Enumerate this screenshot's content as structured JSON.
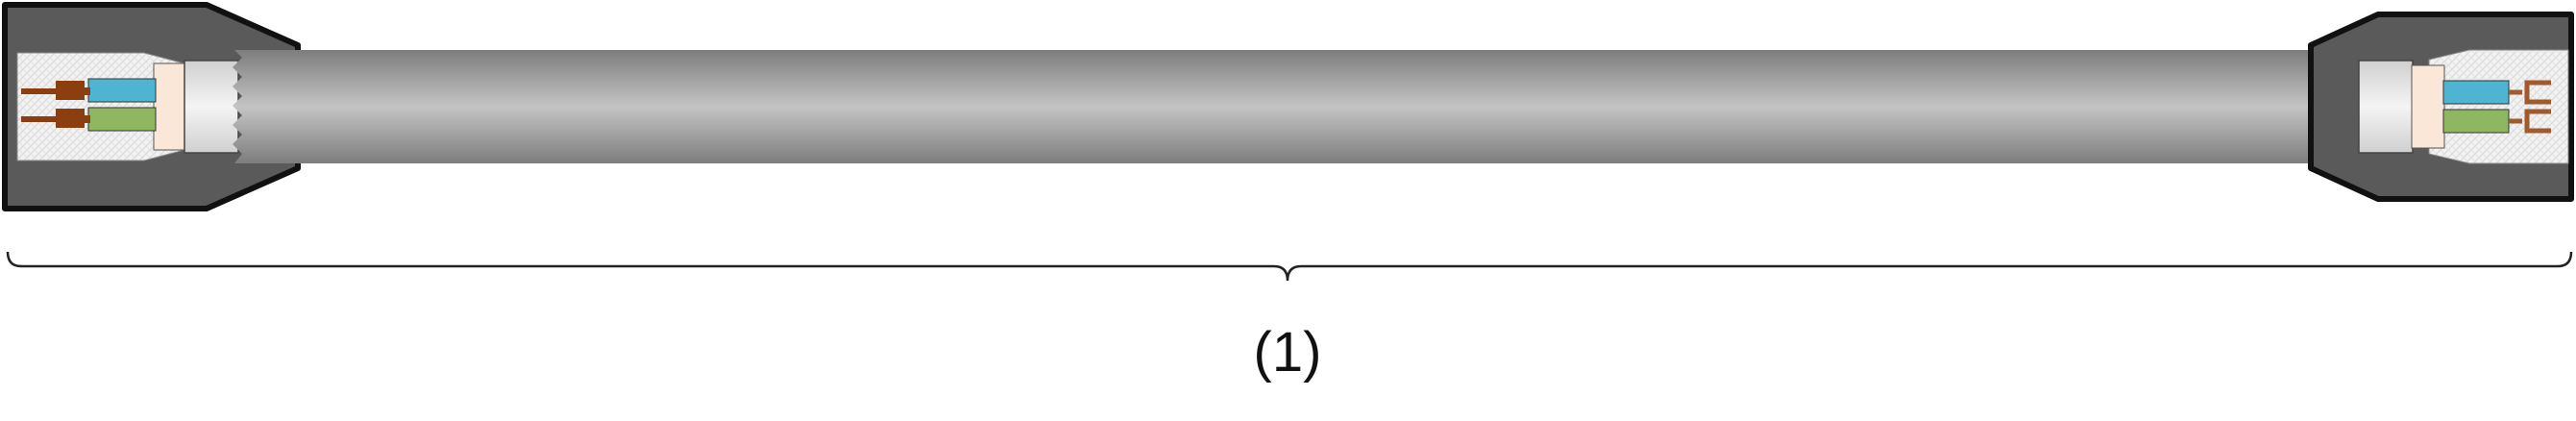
{
  "diagram": {
    "callout_label": "(1)",
    "colors": {
      "background": "#ffffff",
      "connector_housing": "#5a5a5a",
      "housing_outline": "#111111",
      "cable_jacket": "#a9a9a9",
      "cable_highlight": "#c8c8c8",
      "shield_sleeve": "#e6e6e6",
      "inner_insulation": "#fbe7d8",
      "conductor_blue": "#4fb4d2",
      "conductor_green": "#8fb660",
      "pin_contact": "#8b3e10",
      "socket_contact": "#a05a2c",
      "bracket": "#222222"
    }
  }
}
